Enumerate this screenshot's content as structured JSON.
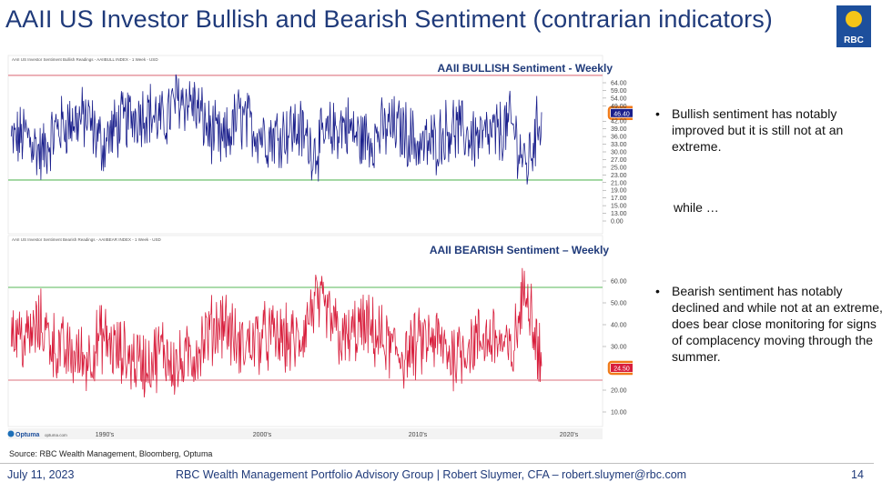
{
  "header": {
    "title": "AAII US Investor Bullish and Bearish Sentiment (contrarian indicators)",
    "logo_text": "RBC"
  },
  "chart_data": [
    {
      "type": "line",
      "title": "AAII BULLISH Sentiment - Weekly",
      "subtitle": "AAII US Investor Sentiment Bullish Readings - AAIIBULL INDEX - 1 Week - USD",
      "y_ticks": [
        "64.00",
        "59.00",
        "54.00",
        "49.00",
        "46.40",
        "42.00",
        "39.00",
        "36.00",
        "33.00",
        "30.00",
        "27.00",
        "25.00",
        "23.00",
        "21.00",
        "19.00",
        "17.00",
        "15.00",
        "13.00",
        "0.00"
      ],
      "reference_lines": [
        {
          "value": 60.5,
          "color": "#e8a0a8"
        },
        {
          "value": 20.5,
          "color": "#8fcf8f"
        }
      ],
      "series": [
        {
          "name": "",
          "color": "#1a1f8c",
          "x": [
            1988,
            1989,
            1990,
            1991,
            1992,
            1993,
            1994,
            1995,
            1996,
            1997,
            1998,
            1999,
            2000,
            2001,
            2002,
            2003,
            2004,
            2005,
            2006,
            2007,
            2008,
            2009,
            2010,
            2011,
            2012,
            2013,
            2014,
            2015,
            2016,
            2017,
            2018,
            2019,
            2020,
            2021,
            2022,
            2023
          ],
          "values": [
            35,
            38,
            30,
            40,
            43,
            44,
            34,
            41,
            45,
            47,
            42,
            52,
            50,
            40,
            34,
            45,
            40,
            37,
            39,
            40,
            32,
            38,
            42,
            36,
            37,
            41,
            39,
            33,
            35,
            41,
            38,
            36,
            38,
            42,
            25,
            46.4
          ]
        }
      ],
      "current_value": "46.40",
      "ylim": [
        0,
        66
      ],
      "x_labels": [
        "1990's",
        "2000's",
        "2010's",
        "2020's"
      ]
    },
    {
      "type": "line",
      "title": "AAII BEARISH Sentiment – Weekly",
      "subtitle": "AAII US Investor Sentiment Bearish Readings - AAIIBEAR INDEX - 1 Week - USD",
      "y_ticks": [
        "60.00",
        "50.00",
        "40.00",
        "30.00",
        "24.50",
        "20.00",
        "10.00"
      ],
      "reference_lines": [
        {
          "value": 50,
          "color": "#8fcf8f"
        },
        {
          "value": 20,
          "color": "#e8a0a8"
        }
      ],
      "series": [
        {
          "name": "",
          "color": "#d81e3c",
          "x": [
            1988,
            1989,
            1990,
            1991,
            1992,
            1993,
            1994,
            1995,
            1996,
            1997,
            1998,
            1999,
            2000,
            2001,
            2002,
            2003,
            2004,
            2005,
            2006,
            2007,
            2008,
            2009,
            2010,
            2011,
            2012,
            2013,
            2014,
            2015,
            2016,
            2017,
            2018,
            2019,
            2020,
            2021,
            2022,
            2023
          ],
          "values": [
            36,
            33,
            38,
            30,
            28,
            27,
            34,
            29,
            27,
            25,
            30,
            24,
            28,
            35,
            40,
            30,
            33,
            34,
            33,
            32,
            45,
            40,
            32,
            37,
            35,
            30,
            28,
            32,
            33,
            28,
            31,
            33,
            34,
            27,
            52,
            24.5
          ]
        }
      ],
      "current_value": "24.50",
      "ylim": [
        5,
        65
      ],
      "x_labels": [
        "1990's",
        "2000's",
        "2010's",
        "2020's"
      ]
    }
  ],
  "branding": {
    "optuma": "Optuma",
    "optuma_url": "optuma.com"
  },
  "bullets": [
    "Bullish sentiment has notably improved but it is still not at an extreme.",
    "Bearish sentiment has notably declined and while not at an extreme, does bear close monitoring for signs of complacency moving through the summer."
  ],
  "bullet_symbol": "•",
  "while_text": "while …",
  "source": "Source: RBC Wealth Management, Bloomberg, Optuma",
  "footer": {
    "date": "July 11, 2023",
    "center": "RBC Wealth Management Portfolio Advisory Group  |  Robert Sluymer, CFA – robert.sluymer@rbc.com",
    "page": "14"
  },
  "colors": {
    "title": "#1f3a7a",
    "bull": "#1a1f8c",
    "bear": "#d81e3c",
    "highlight": "#f07a1a",
    "green": "#8fcf8f",
    "pink": "#e8a0a8"
  }
}
